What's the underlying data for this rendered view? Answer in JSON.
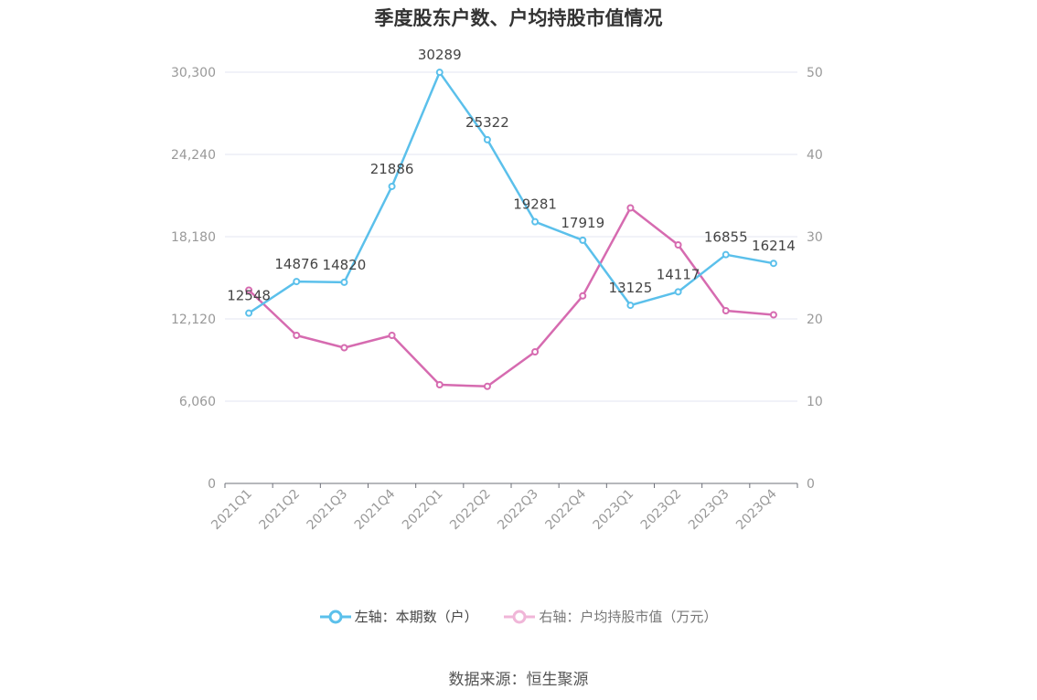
{
  "chart_data": {
    "type": "line",
    "title": "季度股东户数、户均持股市值情况",
    "categories": [
      "2021Q1",
      "2021Q2",
      "2021Q3",
      "2021Q4",
      "2022Q1",
      "2022Q2",
      "2022Q3",
      "2022Q4",
      "2023Q1",
      "2023Q2",
      "2023Q3",
      "2023Q4"
    ],
    "series": [
      {
        "name": "左轴：本期数（户）",
        "axis": "left",
        "color": "#5bc0eb",
        "values": [
          12548,
          14876,
          14820,
          21886,
          30289,
          25322,
          19281,
          17919,
          13125,
          14117,
          16855,
          16214
        ],
        "show_labels": true
      },
      {
        "name": "右轴：户均持股市值（万元）",
        "axis": "right",
        "color": "#d66bb0",
        "values": [
          23.5,
          18.0,
          16.5,
          18.0,
          12.0,
          11.8,
          16.0,
          22.8,
          33.5,
          29.0,
          21.0,
          20.5
        ],
        "show_labels": false
      }
    ],
    "left_axis": {
      "min": 0,
      "max": 30300,
      "ticks": [
        "0",
        "6,060",
        "12,120",
        "18,180",
        "24,240",
        "30,300"
      ]
    },
    "right_axis": {
      "min": 0,
      "max": 50,
      "ticks": [
        "0",
        "10",
        "20",
        "30",
        "40",
        "50"
      ]
    },
    "grid": true,
    "legend_position": "bottom"
  },
  "legend": {
    "item1": "左轴：本期数（户）",
    "item2": "右轴：户均持股市值（万元）"
  },
  "source": "数据来源：恒生聚源"
}
